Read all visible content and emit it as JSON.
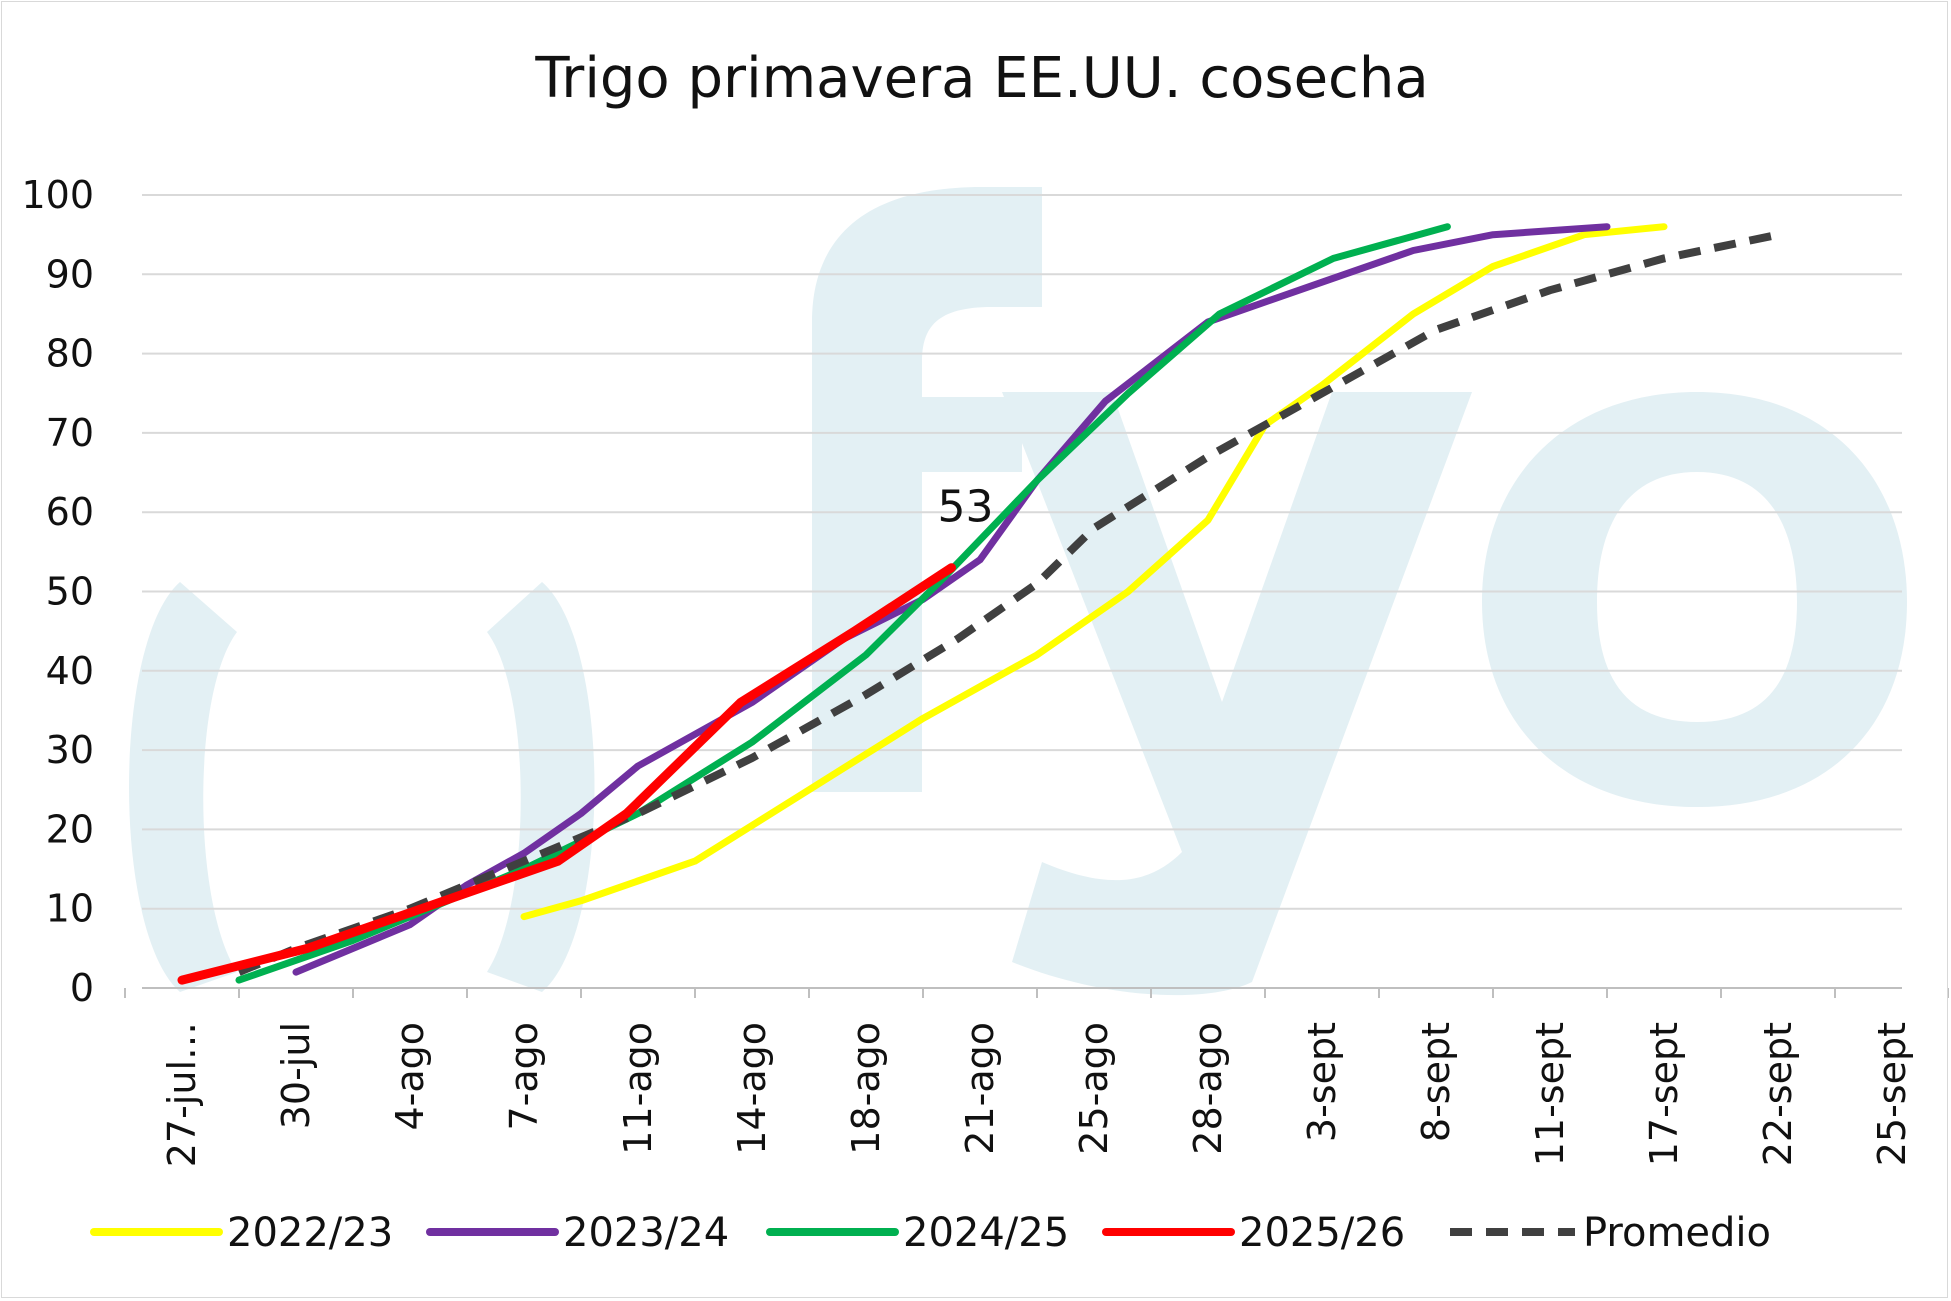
{
  "chart_data": {
    "type": "line",
    "title": "Trigo primavera EE.UU. cosecha",
    "xlabel": "",
    "ylabel": "",
    "ylim": [
      0,
      100
    ],
    "yticks": [
      "0",
      "10",
      "20",
      "30",
      "40",
      "50",
      "60",
      "70",
      "80",
      "90",
      "100"
    ],
    "grid": true,
    "legend_position": "bottom",
    "categories": [
      "27-jul…",
      "30-jul",
      "4-ago",
      "7-ago",
      "11-ago",
      "14-ago",
      "18-ago",
      "21-ago",
      "25-ago",
      "28-ago",
      "3-sept",
      "8-sept",
      "11-sept",
      "17-sept",
      "22-sept",
      "25-sept"
    ],
    "series": [
      {
        "name": "2022/23",
        "color": "#ffff00",
        "dashed": false,
        "points": [
          [
            3,
            9
          ],
          [
            3.5,
            11
          ],
          [
            4.5,
            16
          ],
          [
            5.5,
            25
          ],
          [
            6.5,
            34
          ],
          [
            7.5,
            42
          ],
          [
            8.3,
            50
          ],
          [
            9,
            59
          ],
          [
            9.5,
            71
          ],
          [
            10,
            76
          ],
          [
            10.8,
            85
          ],
          [
            11.5,
            91
          ],
          [
            12.3,
            95
          ],
          [
            13,
            96
          ]
        ]
      },
      {
        "name": "2023/24",
        "color": "#7030a0",
        "dashed": false,
        "points": [
          [
            1,
            2
          ],
          [
            1.5,
            5
          ],
          [
            2,
            8
          ],
          [
            2.5,
            13
          ],
          [
            3,
            17
          ],
          [
            3.5,
            22
          ],
          [
            4,
            28
          ],
          [
            5,
            36
          ],
          [
            5.8,
            44
          ],
          [
            6.5,
            49
          ],
          [
            7,
            54
          ],
          [
            7.5,
            64
          ],
          [
            8.1,
            74
          ],
          [
            9,
            84
          ],
          [
            10,
            89
          ],
          [
            10.8,
            93
          ],
          [
            11.5,
            95
          ],
          [
            12.5,
            96
          ]
        ]
      },
      {
        "name": "2024/25",
        "color": "#00b050",
        "dashed": false,
        "points": [
          [
            0.5,
            1
          ],
          [
            1.5,
            6
          ],
          [
            3,
            15
          ],
          [
            4,
            22
          ],
          [
            5,
            31
          ],
          [
            6,
            42
          ],
          [
            6.7,
            52
          ],
          [
            7.5,
            64
          ],
          [
            8.3,
            75
          ],
          [
            9.1,
            85
          ],
          [
            10.1,
            92
          ],
          [
            11.1,
            96
          ]
        ]
      },
      {
        "name": "2025/26",
        "color": "#ff0000",
        "dashed": false,
        "points": [
          [
            0,
            1
          ],
          [
            1.1,
            5
          ],
          [
            2.1,
            10
          ],
          [
            3.3,
            16
          ],
          [
            3.9,
            22
          ],
          [
            4.9,
            36
          ],
          [
            5.9,
            45
          ],
          [
            6.75,
            53
          ]
        ]
      },
      {
        "name": "Promedio",
        "color": "#404040",
        "dashed": true,
        "points": [
          [
            0.5,
            2
          ],
          [
            1,
            5
          ],
          [
            2,
            10
          ],
          [
            3,
            16
          ],
          [
            4,
            22
          ],
          [
            5,
            29
          ],
          [
            6,
            37
          ],
          [
            6.8,
            44
          ],
          [
            7.5,
            51
          ],
          [
            8,
            58
          ],
          [
            9,
            67
          ],
          [
            10,
            75
          ],
          [
            11,
            83
          ],
          [
            12,
            88
          ],
          [
            13,
            92
          ],
          [
            14,
            95
          ]
        ]
      }
    ],
    "annotations": [
      {
        "text": "53",
        "series": "2025/26",
        "x": 6.75,
        "y": 53
      }
    ]
  },
  "watermark": {
    "text": "fyo",
    "color": "#e3f0f4"
  }
}
